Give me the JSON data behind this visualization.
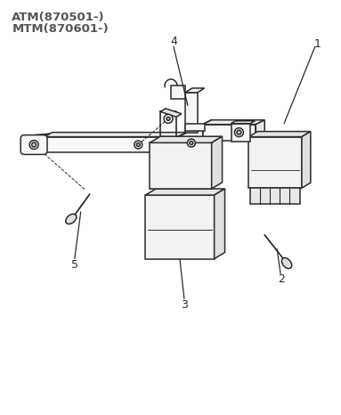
{
  "title_line1": "ATM(870501-)",
  "title_line2": "MTM(870601-)",
  "bg_color": "#ffffff",
  "line_color": "#2a2a2a",
  "text_color": "#555555",
  "label_color": "#2a2a2a",
  "figsize": [
    3.83,
    4.66
  ],
  "dpi": 100
}
